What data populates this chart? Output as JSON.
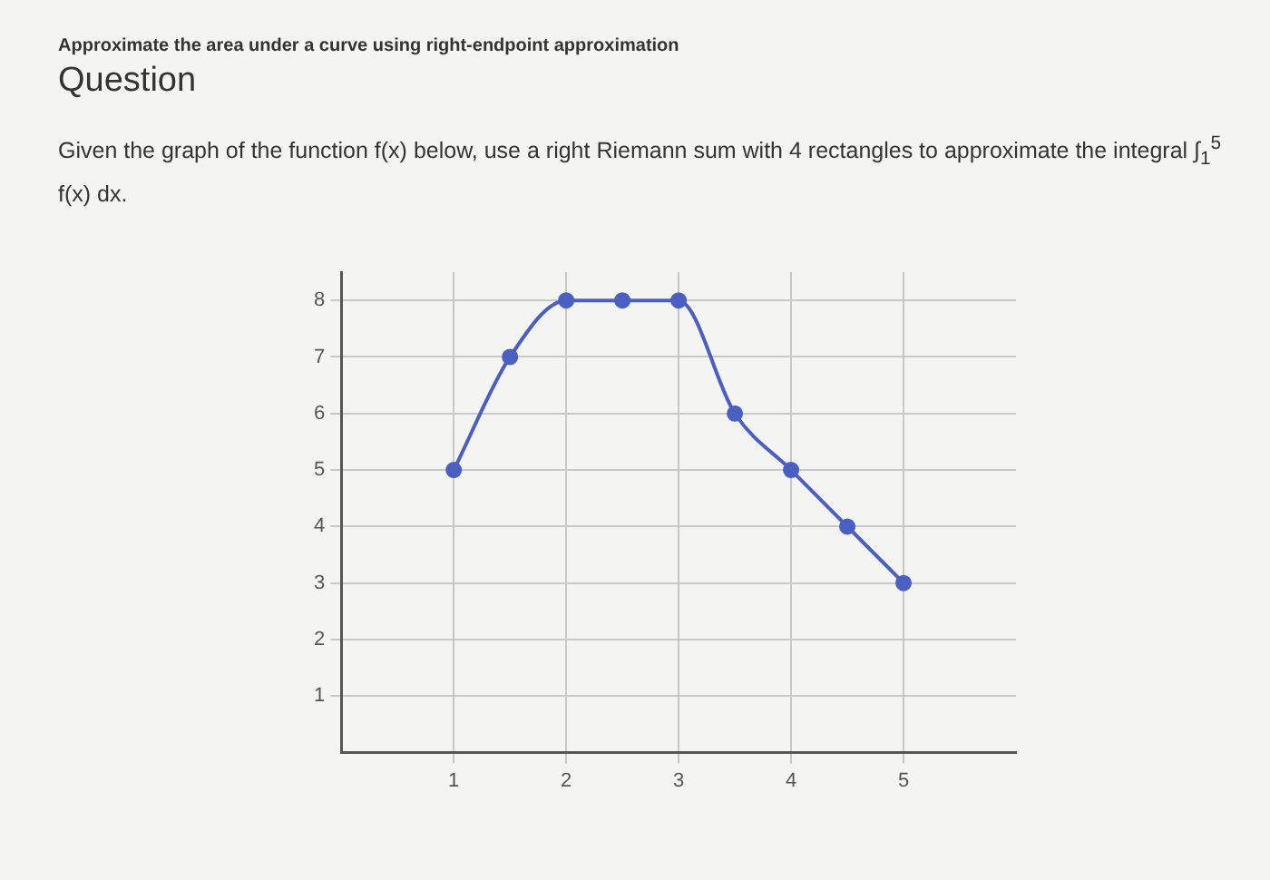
{
  "chart_data": {
    "type": "line",
    "title": "Approximate the area under a curve using right-endpoint approximation",
    "subtitle": "Question",
    "annotations": [
      "Given the graph of the function f(x) below, use a right Riemann sum with 4 rectangles to approximate the integral ∫$_{1}$$^{5}$ f(x) dx."
    ],
    "x": [
      1,
      1.5,
      2,
      2.5,
      3,
      3.5,
      4,
      4.5,
      5
    ],
    "series": [
      {
        "color": "#4a5fc1",
        "values": [
          5,
          7,
          8,
          8,
          8,
          6,
          5,
          4,
          3
        ]
      }
    ],
    "xlim": [
      0,
      6
    ],
    "xticks": [
      1,
      2,
      3,
      4,
      5
    ],
    "ylim": [
      0,
      8.5
    ],
    "yticks": [
      1,
      2,
      3,
      4,
      5,
      6,
      7,
      8
    ],
    "grid": true,
    "legend": false,
    "marker": "circle",
    "line_style": "solid"
  }
}
